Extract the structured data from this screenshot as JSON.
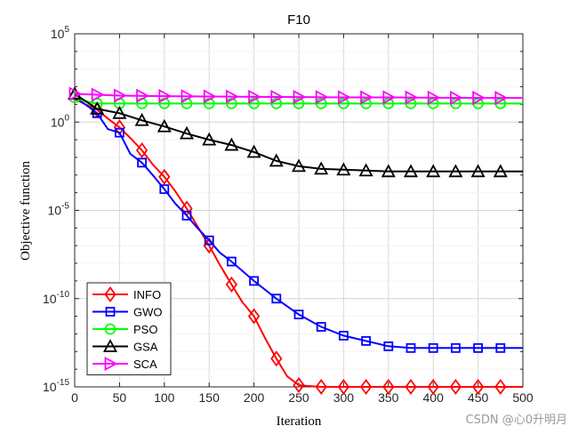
{
  "chart_data": {
    "type": "line",
    "title": "F10",
    "xlabel": "Iteration",
    "ylabel": "Objective function",
    "y_scale": "log",
    "xlim": [
      0,
      500
    ],
    "ylim_exp": [
      -15,
      5
    ],
    "xticks": [
      0,
      50,
      100,
      150,
      200,
      250,
      300,
      350,
      400,
      450,
      500
    ],
    "yticks": [
      {
        "exp": -15,
        "label": "10",
        "sup": "-15"
      },
      {
        "exp": -10,
        "label": "10",
        "sup": "-10"
      },
      {
        "exp": -5,
        "label": "10",
        "sup": "-5"
      },
      {
        "exp": 0,
        "label": "10",
        "sup": "0"
      },
      {
        "exp": 5,
        "label": "10",
        "sup": "5"
      }
    ],
    "grid": true,
    "legend_position": "bottom-left",
    "series": [
      {
        "name": "INFO",
        "color": "#ff0000",
        "marker": "diamond",
        "x": [
          0,
          12,
          25,
          37,
          50,
          62,
          75,
          87,
          100,
          112,
          125,
          137,
          150,
          162,
          175,
          187,
          200,
          212,
          225,
          237,
          250,
          260,
          275,
          300,
          325,
          350,
          375,
          400,
          425,
          450,
          475,
          500
        ],
        "y_exp": [
          1.3,
          1.0,
          0.7,
          0.2,
          -0.3,
          -0.9,
          -1.6,
          -2.4,
          -3.1,
          -3.9,
          -4.9,
          -5.9,
          -7.0,
          -8.1,
          -9.2,
          -10.2,
          -11.0,
          -12.2,
          -13.4,
          -14.4,
          -14.9,
          -14.95,
          -15.0,
          -15.0,
          -15.0,
          -15.0,
          -15.0,
          -15.0,
          -15.0,
          -15.0,
          -15.0,
          -15.0
        ],
        "markers_x": [
          25,
          50,
          75,
          100,
          125,
          150,
          175,
          200,
          225,
          250,
          275,
          300,
          325,
          350,
          375,
          400,
          425,
          450,
          475
        ]
      },
      {
        "name": "GWO",
        "color": "#0000ff",
        "marker": "square",
        "x": [
          0,
          12,
          25,
          37,
          50,
          62,
          75,
          87,
          100,
          112,
          125,
          137,
          150,
          162,
          175,
          200,
          225,
          250,
          275,
          300,
          325,
          350,
          375,
          400,
          425,
          450,
          475,
          500
        ],
        "y_exp": [
          1.4,
          1.0,
          0.5,
          -0.4,
          -0.6,
          -1.8,
          -2.3,
          -3.0,
          -3.8,
          -4.6,
          -5.3,
          -6.0,
          -6.7,
          -7.4,
          -7.9,
          -9.0,
          -10.0,
          -10.9,
          -11.6,
          -12.1,
          -12.4,
          -12.7,
          -12.8,
          -12.8,
          -12.8,
          -12.8,
          -12.8,
          -12.8
        ],
        "markers_x": [
          25,
          50,
          75,
          100,
          125,
          150,
          175,
          200,
          225,
          250,
          275,
          300,
          325,
          350,
          375,
          400,
          425,
          450,
          475
        ]
      },
      {
        "name": "PSO",
        "color": "#00ff00",
        "marker": "circle",
        "x": [
          0,
          10,
          25,
          50,
          100,
          200,
          300,
          400,
          500
        ],
        "y_exp": [
          1.4,
          1.2,
          1.05,
          1.05,
          1.05,
          1.05,
          1.05,
          1.05,
          1.05
        ],
        "markers_x": [
          0,
          25,
          50,
          75,
          100,
          125,
          150,
          175,
          200,
          225,
          250,
          275,
          300,
          325,
          350,
          375,
          400,
          425,
          450,
          475
        ]
      },
      {
        "name": "GSA",
        "color": "#000000",
        "marker": "triangle-up",
        "x": [
          0,
          25,
          50,
          75,
          100,
          125,
          150,
          175,
          200,
          225,
          250,
          275,
          300,
          325,
          350,
          375,
          400,
          425,
          450,
          475,
          500
        ],
        "y_exp": [
          1.6,
          0.75,
          0.5,
          0.1,
          -0.25,
          -0.65,
          -1.0,
          -1.3,
          -1.7,
          -2.2,
          -2.5,
          -2.65,
          -2.7,
          -2.75,
          -2.8,
          -2.8,
          -2.8,
          -2.8,
          -2.8,
          -2.8,
          -2.8
        ],
        "markers_x": [
          0,
          25,
          50,
          75,
          100,
          125,
          150,
          175,
          200,
          225,
          250,
          275,
          300,
          325,
          350,
          375,
          400,
          425,
          450,
          475
        ]
      },
      {
        "name": "SCA",
        "color": "#ff00ff",
        "marker": "triangle-right",
        "x": [
          0,
          25,
          50,
          100,
          150,
          200,
          250,
          300,
          350,
          400,
          450,
          500
        ],
        "y_exp": [
          1.6,
          1.55,
          1.5,
          1.47,
          1.45,
          1.43,
          1.42,
          1.4,
          1.4,
          1.38,
          1.37,
          1.37
        ],
        "markers_x": [
          0,
          25,
          50,
          75,
          100,
          125,
          150,
          175,
          200,
          225,
          250,
          275,
          300,
          325,
          350,
          375,
          400,
          425,
          450,
          475
        ]
      }
    ]
  },
  "watermark": "CSDN @心0升明月"
}
